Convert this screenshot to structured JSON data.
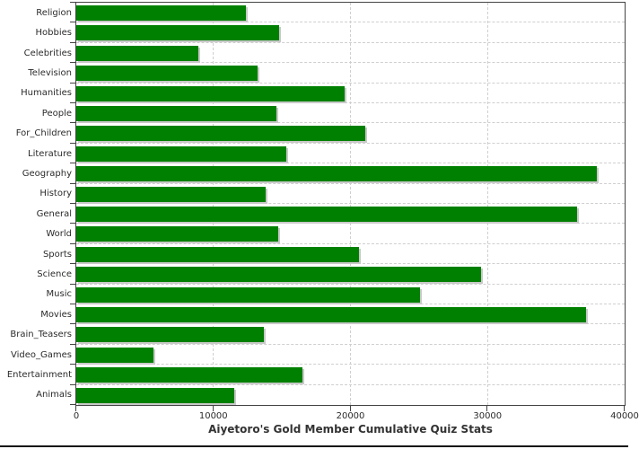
{
  "title": "Aiyetoro's Gold Member Cumulative Quiz Stats",
  "chart_data": {
    "type": "bar",
    "orientation": "horizontal",
    "title": "Aiyetoro's Gold Member Cumulative Quiz Stats",
    "categories": [
      "Religion",
      "Hobbies",
      "Celebrities",
      "Television",
      "Humanities",
      "People",
      "For_Children",
      "Literature",
      "Geography",
      "History",
      "General",
      "World",
      "Sports",
      "Science",
      "Music",
      "Movies",
      "Brain_Teasers",
      "Video_Games",
      "Entertainment",
      "Animals"
    ],
    "values": [
      12400,
      14800,
      8900,
      13200,
      19600,
      14600,
      21100,
      15300,
      38000,
      13800,
      36500,
      14700,
      20600,
      29500,
      25100,
      37200,
      13700,
      5600,
      16500,
      11500
    ],
    "xlim": [
      0,
      40000
    ],
    "x_ticks": [
      0,
      10000,
      20000,
      30000,
      40000
    ],
    "x_tick_labels": [
      "0",
      "10000",
      "20000",
      "30000",
      "40000"
    ],
    "grid": "dashed",
    "legend": "none",
    "colors": {
      "bar": "#008000",
      "bar_shadow": "#c9c9c9",
      "gridline": "#cfcfcf",
      "axis": "#444444",
      "text": "#2b2b2b",
      "title_text": "#333333",
      "background": "#ffffff",
      "bottom_strip": "#151515"
    }
  }
}
